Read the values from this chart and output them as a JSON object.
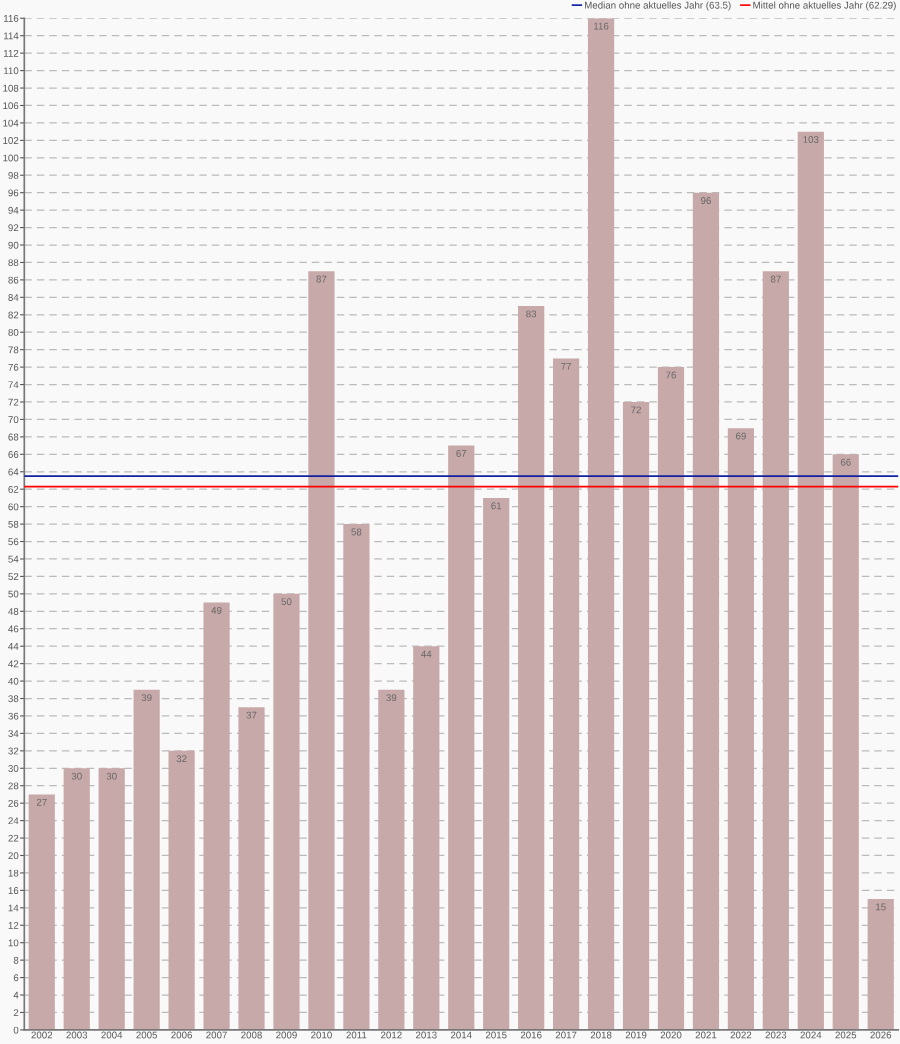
{
  "chart_data": {
    "type": "bar",
    "categories": [
      "2002",
      "2003",
      "2004",
      "2005",
      "2006",
      "2007",
      "2008",
      "2009",
      "2010",
      "2011",
      "2012",
      "2013",
      "2014",
      "2015",
      "2016",
      "2017",
      "2018",
      "2019",
      "2020",
      "2021",
      "2022",
      "2023",
      "2024",
      "2025",
      "2026"
    ],
    "values": [
      27,
      30,
      30,
      39,
      32,
      49,
      37,
      50,
      87,
      58,
      39,
      44,
      67,
      61,
      83,
      77,
      116,
      72,
      76,
      96,
      69,
      87,
      103,
      66,
      15
    ],
    "color": "#c8a9a9",
    "data_labels": true,
    "ylim": [
      0,
      116
    ],
    "yticks": [
      0,
      2,
      4,
      6,
      8,
      10,
      12,
      14,
      16,
      18,
      20,
      22,
      24,
      26,
      28,
      30,
      32,
      34,
      36,
      38,
      40,
      42,
      44,
      46,
      48,
      50,
      52,
      54,
      56,
      58,
      60,
      62,
      64,
      66,
      68,
      70,
      72,
      74,
      76,
      78,
      80,
      82,
      84,
      86,
      88,
      90,
      92,
      94,
      96,
      98,
      100,
      102,
      104,
      106,
      108,
      110,
      112,
      114,
      116
    ],
    "grid": "y",
    "legend": "top right",
    "ref_lines": [
      {
        "axis": "y",
        "value": 63.5,
        "label": "Median ohne aktuelles Jahr (63.5)",
        "color": "#1020a0"
      },
      {
        "axis": "y",
        "value": 62.29,
        "label": "Mittel ohne aktuelles Jahr (62.29)",
        "color": "#ff0000"
      }
    ]
  }
}
